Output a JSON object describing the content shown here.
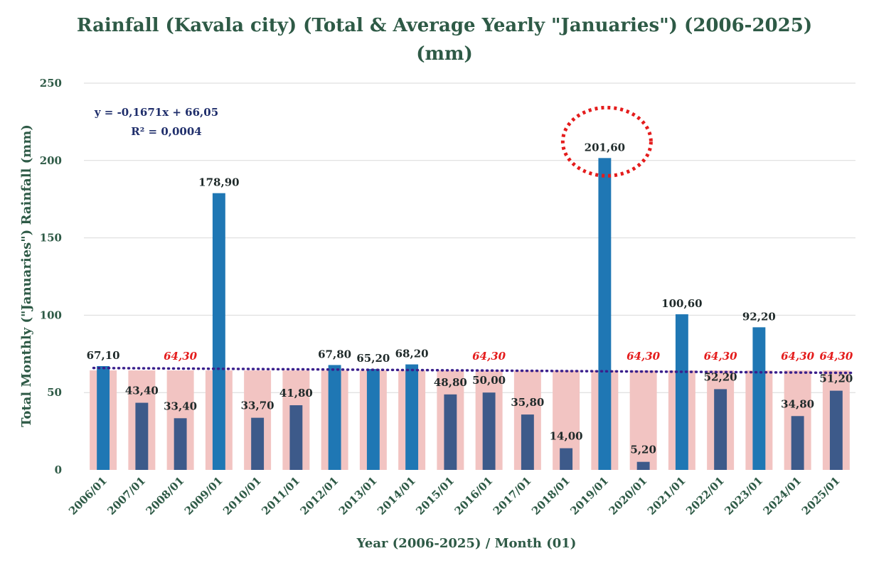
{
  "chart_data": {
    "type": "bar",
    "title_line1": "Rainfall (Kavala city) (Total & Average Yearly \"Januaries\") (2006-2025)",
    "title_line2": "(mm)",
    "xlabel": "Year (2006-2025) / Month (01)",
    "ylabel": "Total Monthly (\"Januaries\") Rainfall (mm)",
    "ylim": [
      0,
      250
    ],
    "yticks": [
      0,
      50,
      100,
      150,
      200,
      250
    ],
    "grid": true,
    "categories": [
      "2006/01",
      "2007/01",
      "2008/01",
      "2009/01",
      "2010/01",
      "2011/01",
      "2012/01",
      "2013/01",
      "2014/01",
      "2015/01",
      "2016/01",
      "2017/01",
      "2018/01",
      "2019/01",
      "2020/01",
      "2021/01",
      "2022/01",
      "2023/01",
      "2024/01",
      "2025/01"
    ],
    "series": [
      {
        "values": [
          67.1,
          43.4,
          33.4,
          178.9,
          33.7,
          41.8,
          67.8,
          65.2,
          68.2,
          48.8,
          50.0,
          35.8,
          14.0,
          201.6,
          5.2,
          100.6,
          52.2,
          92.2,
          34.8,
          51.2
        ],
        "labels": [
          "67,10",
          "43,40",
          "33,40",
          "178,90",
          "33,70",
          "41,80",
          "67,80",
          "65,20",
          "68,20",
          "48,80",
          "50,00",
          "35,80",
          "14,00",
          "201,60",
          "5,20",
          "100,60",
          "52,20",
          "92,20",
          "34,80",
          "51,20"
        ],
        "color_below_avg": "#3d5a8a",
        "color_above_avg": "#1f77b4"
      }
    ],
    "average": {
      "value": 64.3,
      "label": "64,30",
      "color": "#f2c4c2",
      "label_color": "#e41c1c",
      "label_at": [
        "2008/01",
        "2016/01",
        "2020/01",
        "2022/01",
        "2024/01",
        "2025/01"
      ]
    },
    "trendline": {
      "slope": -0.1671,
      "intercept": 66.05,
      "equation": "y = -0,1671x + 66,05",
      "r2": "R² = 0,0004",
      "color": "#3a1f8c"
    },
    "highlight": {
      "category": "2019/01",
      "color": "#e41c1c"
    },
    "text_color": "#2e5a46"
  }
}
